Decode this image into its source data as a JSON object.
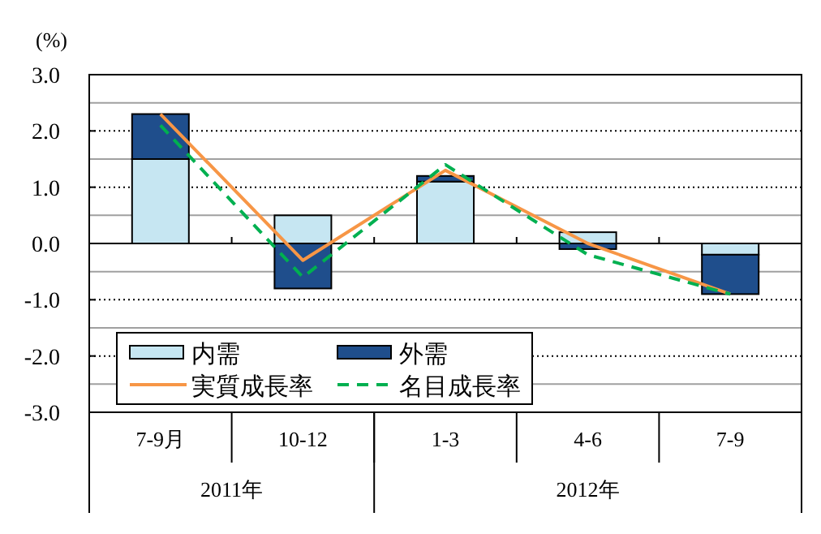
{
  "chart_data": {
    "type": "bar",
    "stacked": true,
    "ylabel": "(%)",
    "categories": [
      "7-9月",
      "10-12",
      "1-3",
      "4-6",
      "7-9"
    ],
    "series": [
      {
        "name": "内需",
        "color": "#c6e6f2",
        "values": [
          1.5,
          0.5,
          1.1,
          0.2,
          -0.2
        ]
      },
      {
        "name": "外需",
        "color": "#1f4e8c",
        "values": [
          0.8,
          -0.8,
          0.1,
          -0.1,
          -0.7
        ]
      },
      {
        "name": "実質成長率",
        "type": "line",
        "color": "#f79646",
        "line_style": "solid",
        "values": [
          2.3,
          -0.3,
          1.3,
          0.0,
          -0.9
        ]
      },
      {
        "name": "名目成長率",
        "type": "line",
        "color": "#00b050",
        "line_style": "dashed",
        "values": [
          2.1,
          -0.6,
          1.4,
          -0.2,
          -0.9
        ]
      }
    ],
    "ylim": [
      -3.0,
      3.0
    ],
    "yticks": [
      {
        "value": -3,
        "label": "-3.0"
      },
      {
        "value": -2.5,
        "label": null
      },
      {
        "value": -2,
        "label": "-2.0"
      },
      {
        "value": -1.5,
        "label": null
      },
      {
        "value": -1,
        "label": "-1.0"
      },
      {
        "value": -0.5,
        "label": null
      },
      {
        "value": 0,
        "label": "0.0"
      },
      {
        "value": 0.5,
        "label": null
      },
      {
        "value": 1,
        "label": "1.0"
      },
      {
        "value": 1.5,
        "label": null
      },
      {
        "value": 2,
        "label": "2.0"
      },
      {
        "value": 2.5,
        "label": null
      },
      {
        "value": 3,
        "label": "3.0"
      }
    ],
    "grid": "y",
    "legend": "bottom left",
    "marker": "none",
    "annotations": [
      "2011年",
      "2012年"
    ]
  }
}
